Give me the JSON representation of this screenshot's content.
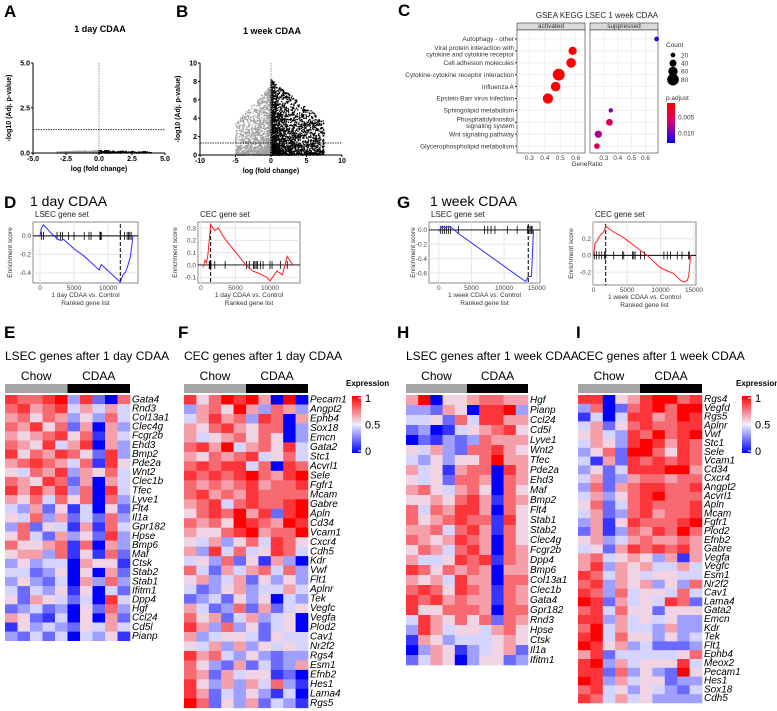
{
  "panels": {
    "A": {
      "letter": "A",
      "title": "1 day CDAA"
    },
    "B": {
      "letter": "B",
      "title": "1 week CDAA"
    },
    "C": {
      "letter": "C",
      "title": "GSEA KEGG LSEC 1 week CDAA"
    },
    "D": {
      "letter": "D",
      "title": "1 day CDAA"
    },
    "E": {
      "letter": "E",
      "title": "LSEC genes after 1 day CDAA"
    },
    "F": {
      "letter": "F",
      "title": "CEC genes after 1 day CDAA"
    },
    "G": {
      "letter": "G",
      "title": "1 week CDAA"
    },
    "H": {
      "letter": "H",
      "title": "LSEC genes after 1 week CDAA"
    },
    "I": {
      "letter": "I",
      "title": "CEC genes after 1 week CDAA"
    }
  },
  "volcano_common": {
    "xlabel": "log (fold change)",
    "ylabel": "-log10 (Adj. p-value)"
  },
  "gsea_common": {
    "ylabel": "Enrichment score",
    "xlabel2": "Ranked gene list"
  },
  "heatmap_common": {
    "group1": "Chow",
    "group2": "CDAA",
    "legend_title": "Expression",
    "legend_ticks": [
      "1",
      "0.5",
      "0"
    ],
    "colors": {
      "low": "#0000ff",
      "mid": "#eeeeff",
      "high": "#ff0000",
      "chow": "#a6a6a6",
      "cdaa": "#000000"
    }
  },
  "chart_data": [
    {
      "id": "A",
      "type": "scatter",
      "title": "1 day CDAA",
      "xlabel": "log (fold change)",
      "ylabel": "-log10 (Adj. p-value)",
      "xlim": [
        -5,
        5
      ],
      "ylim": [
        0,
        5
      ],
      "xticks": [
        "-5.0",
        "-2.5",
        "0.0",
        "2.5",
        "5.0"
      ],
      "xtick_values": [
        -5,
        -2.5,
        0,
        2.5,
        5
      ],
      "yticks": [
        "0.0",
        "2.5",
        "5.0"
      ],
      "ytick_values": [
        0,
        2.5,
        5
      ],
      "threshold_y": 1.3,
      "threshold_x": 0,
      "series": [
        {
          "name": "down",
          "color": "#a0a0a0",
          "n": 320,
          "x_range": [
            -3.2,
            0
          ],
          "y_range": [
            0,
            0.15
          ]
        },
        {
          "name": "up",
          "color": "#000000",
          "n": 260,
          "x_range": [
            0,
            4
          ],
          "y_range": [
            0,
            0.15
          ]
        }
      ]
    },
    {
      "id": "B",
      "type": "scatter",
      "title": "1 week CDAA",
      "xlabel": "log (fold change)",
      "ylabel": "-log10 (Adj. p-value)",
      "xlim": [
        -10,
        10
      ],
      "ylim": [
        0,
        10
      ],
      "xticks": [
        "-10",
        "-5",
        "0",
        "5",
        "10"
      ],
      "xtick_values": [
        -10,
        -5,
        0,
        5,
        10
      ],
      "yticks": [
        "0",
        "2",
        "4",
        "6",
        "8",
        "10"
      ],
      "ytick_values": [
        0,
        2,
        4,
        6,
        8,
        10
      ],
      "threshold_y": 1.3,
      "threshold_x": 0,
      "series": [
        {
          "name": "down",
          "color": "#a0a0a0",
          "n": 1600,
          "x_range": [
            -5,
            0
          ],
          "y_range": [
            0,
            7.6
          ]
        },
        {
          "name": "up",
          "color": "#000000",
          "n": 2600,
          "x_range": [
            0,
            7.5
          ],
          "y_range": [
            0,
            8.2
          ]
        }
      ]
    },
    {
      "id": "C",
      "type": "scatter",
      "title": "GSEA KEGG LSEC 1 week CDAA",
      "xlabel": "GeneRatio",
      "facets": [
        {
          "label": "activated",
          "xlim": [
            0.22,
            0.66
          ],
          "xticks": [
            "0.3",
            "0.4",
            "0.5",
            "0.6"
          ],
          "xtick_values": [
            0.3,
            0.4,
            0.5,
            0.6
          ]
        },
        {
          "label": "suppressed",
          "xlim": [
            0.2,
            0.69
          ],
          "xticks": [
            "0.3",
            "0.4",
            "0.5",
            "0.6"
          ],
          "xtick_values": [
            0.3,
            0.4,
            0.5,
            0.6
          ]
        }
      ],
      "categories": [
        "Autophagy - other",
        "Viral protein interaction with|cytokine and cytokine receptor",
        "Cell adhesion molecules",
        "Cytokine-cytokine receptor interaction",
        "Influenza A",
        "Epstein-Barr virus infection",
        "Sphingolipid metabolism",
        "Phosphatidylinositol|signaling system",
        "Wnt signaling pathway",
        "Glycerophospholipid metabolism"
      ],
      "points": [
        {
          "category": 0,
          "facet": 1,
          "gene_ratio": 0.68,
          "count": 20,
          "p_adjust": 0.0125
        },
        {
          "category": 1,
          "facet": 0,
          "gene_ratio": 0.58,
          "count": 50,
          "p_adjust": 0.0005
        },
        {
          "category": 2,
          "facet": 0,
          "gene_ratio": 0.57,
          "count": 62,
          "p_adjust": 0.0005
        },
        {
          "category": 3,
          "facet": 0,
          "gene_ratio": 0.49,
          "count": 82,
          "p_adjust": 0.0005
        },
        {
          "category": 4,
          "facet": 0,
          "gene_ratio": 0.47,
          "count": 62,
          "p_adjust": 0.0005
        },
        {
          "category": 5,
          "facet": 0,
          "gene_ratio": 0.42,
          "count": 68,
          "p_adjust": 0.0005
        },
        {
          "category": 6,
          "facet": 1,
          "gene_ratio": 0.35,
          "count": 18,
          "p_adjust": 0.009
        },
        {
          "category": 7,
          "facet": 1,
          "gene_ratio": 0.34,
          "count": 38,
          "p_adjust": 0.005
        },
        {
          "category": 8,
          "facet": 1,
          "gene_ratio": 0.26,
          "count": 42,
          "p_adjust": 0.008
        },
        {
          "category": 9,
          "facet": 1,
          "gene_ratio": 0.25,
          "count": 28,
          "p_adjust": 0.004
        }
      ],
      "size_legend": {
        "title": "Count",
        "values": [
          20,
          40,
          60,
          80
        ],
        "labels": [
          "20",
          "40",
          "60",
          "80"
        ]
      },
      "color_legend": {
        "title": "p.adjust",
        "labels": [
          "0.005",
          "0.010"
        ],
        "values": [
          0.005,
          0.01
        ],
        "range": [
          0.0005,
          0.013
        ],
        "colors": [
          "#ff0000",
          "#d0007a",
          "#0000ff"
        ]
      }
    },
    {
      "id": "D-LSEC",
      "type": "line",
      "title": "LSEC gene set",
      "color": "#2d2dff",
      "xlabel": "1 day CDAA vs. Control",
      "xlabel2": "Ranked gene list",
      "ylabel": "Enrichment score",
      "xlim": [
        -1030,
        14400
      ],
      "ylim": [
        -0.51,
        0.15
      ],
      "xticks": [
        "0",
        "5000",
        "10000"
      ],
      "xtick_values": [
        0,
        5000,
        10000
      ],
      "yticks": [
        "0.0",
        "-0.2",
        "-0.4"
      ],
      "ytick_values": [
        0,
        -0.2,
        -0.4
      ],
      "leading_edge": 11800,
      "x": [
        0,
        200,
        500,
        1500,
        2500,
        3000,
        3500,
        5000,
        6500,
        8700,
        9000,
        11800,
        12200,
        12600,
        13000,
        13300,
        13500,
        13650
      ],
      "y": [
        0,
        0.08,
        0.12,
        0.04,
        -0.03,
        -0.05,
        -0.04,
        -0.14,
        -0.22,
        -0.37,
        -0.31,
        -0.5,
        -0.42,
        -0.39,
        -0.3,
        -0.22,
        -0.1,
        0
      ],
      "hits": [
        200,
        500,
        2500,
        3000,
        3300,
        4200,
        5000,
        6500,
        7200,
        7500,
        8800,
        8850,
        8900,
        9000,
        11800,
        12400,
        12800,
        13000,
        13200,
        13400
      ]
    },
    {
      "id": "D-CEC",
      "type": "line",
      "title": "CEC gene set",
      "color": "#ff2020",
      "xlabel": "1 day CDAA vs. Control",
      "xlabel2": "Ranked gene list",
      "ylabel": "Enrichment score",
      "xlim": [
        -430,
        14350
      ],
      "ylim": [
        -0.147,
        0.35
      ],
      "xticks": [
        "0",
        "5000",
        "10000"
      ],
      "xtick_values": [
        0,
        5000,
        10000
      ],
      "yticks": [
        "-0.1",
        "0.0",
        "0.1",
        "0.2",
        "0.3"
      ],
      "ytick_values": [
        -0.1,
        0,
        0.1,
        0.2,
        0.3
      ],
      "leading_edge": 1400,
      "x": [
        300,
        600,
        800,
        1000,
        1200,
        1400,
        2000,
        2500,
        3500,
        6500,
        7500,
        8500,
        9500,
        10000,
        11000,
        11800,
        12500,
        13300
      ],
      "y": [
        -0.02,
        0.04,
        0.02,
        0.08,
        0.2,
        0.33,
        0.28,
        0.3,
        0.21,
        0.0,
        -0.05,
        -0.07,
        -0.1,
        -0.13,
        -0.05,
        -0.08,
        0.07,
        0.0
      ],
      "hits": [
        1200,
        1250,
        1300,
        1350,
        1400,
        1450,
        2000,
        3500,
        6600,
        7000,
        7600,
        7800,
        8000,
        8200,
        8600,
        9000,
        10000,
        10300,
        11500,
        12500
      ]
    },
    {
      "id": "G-LSEC",
      "type": "line",
      "title": "LSEC gene set",
      "color": "#2d2dff",
      "xlabel": "1 week CDAA vs. Control",
      "xlabel2": "Ranked gene list",
      "ylabel": "Enrichment score",
      "xlim": [
        -1500,
        15500
      ],
      "ylim": [
        -0.74,
        0.11
      ],
      "xticks": [
        "0",
        "5000",
        "10000",
        "15000"
      ],
      "xtick_values": [
        0,
        5000,
        10000,
        15000
      ],
      "yticks": [
        "0.0",
        "-0.2",
        "-0.4",
        "-0.6"
      ],
      "ytick_values": [
        0,
        -0.2,
        -0.4,
        -0.6
      ],
      "leading_edge": 13700,
      "x": [
        0,
        500,
        1000,
        1500,
        2000,
        3000,
        13300,
        13700,
        14200,
        14500
      ],
      "y": [
        -0.02,
        0.05,
        0.03,
        0.05,
        0.03,
        -0.05,
        -0.72,
        -0.65,
        -0.65,
        0.0
      ],
      "hits": [
        300,
        600,
        900,
        1200,
        1500,
        1800,
        3000,
        7000,
        7500,
        8000,
        8600,
        10500,
        12000,
        13600,
        13800,
        14000,
        14200,
        14300
      ]
    },
    {
      "id": "G-CEC",
      "type": "line",
      "title": "CEC gene set",
      "color": "#ff2020",
      "xlabel": "1 week CDAA vs. Control",
      "xlabel2": "Ranked gene list",
      "ylabel": "Enrichment score",
      "xlim": [
        -100,
        15300
      ],
      "ylim": [
        -0.355,
        0.4
      ],
      "xticks": [
        "0",
        "5000",
        "10000",
        "15000"
      ],
      "xtick_values": [
        0,
        5000,
        10000,
        15000
      ],
      "yticks": [
        "-0.2",
        "0.0",
        "0.2"
      ],
      "ytick_values": [
        -0.2,
        0,
        0.2
      ],
      "leading_edge": 1800,
      "x": [
        0,
        200,
        500,
        800,
        1200,
        1500,
        1800,
        3000,
        4500,
        6000,
        8000,
        10000,
        12000,
        13000,
        13500,
        14000,
        14200,
        14500
      ],
      "y": [
        0,
        0.15,
        0.17,
        0.22,
        0.26,
        0.28,
        0.35,
        0.28,
        0.21,
        0.12,
        0.0,
        -0.15,
        -0.22,
        -0.3,
        -0.32,
        -0.3,
        -0.25,
        0.0
      ],
      "hits": [
        100,
        400,
        800,
        1200,
        1600,
        1800,
        3000,
        4300,
        4500,
        5800,
        6000,
        6200,
        7000,
        7600,
        10500,
        11000,
        11500,
        12500,
        13200,
        14200,
        14300
      ]
    },
    {
      "id": "E",
      "type": "heatmap",
      "title": "LSEC genes after 1 day CDAA",
      "n_chow": 5,
      "n_cdaa": 5,
      "value_scale": "digit/9",
      "genes": [
        "Gata4",
        "Rnd3",
        "Col13a1",
        "Clec4g",
        "Fcgr2b",
        "Ehd3",
        "Bmp2",
        "Pde2a",
        "Wnt2",
        "Clec1b",
        "Tfec",
        "Lyve1",
        "Flt4",
        "Il1a",
        "Gpr182",
        "Hpse",
        "Bmp6",
        "Maf",
        "Ctsk",
        "Stab2",
        "Stab1",
        "Ifitm1",
        "Dpp4",
        "Hgf",
        "Ccl24",
        "Cd5l",
        "Pianp"
      ],
      "rows": [
        "8778938207",
        "7867846464",
        "6757635374",
        "7685726063",
        "6567857164",
        "7658468063",
        "8576875283",
        "6787647185",
        "5476836574",
        "7658726064",
        "8686837084",
        "6574757073",
        "4362514052",
        "5473624273",
        "3725416174",
        "5742635283",
        "7556717063",
        "5663715172",
        "3534406551",
        "4423505062",
        "3532406373",
        "4243515042",
        "5265424084",
        "2342305273",
        "6521405062",
        "1534325464",
        "3242404351"
      ]
    },
    {
      "id": "F",
      "type": "heatmap",
      "title": "CEC genes after 1 day CDAA",
      "n_chow": 5,
      "n_cdaa": 5,
      "value_scale": "digit/9",
      "genes": [
        "Pecam1",
        "Angpt2",
        "Ephb4",
        "Sox18",
        "Emcn",
        "Gata2",
        "Stc1",
        "Acvrl1",
        "Sele",
        "Fgfr1",
        "Mcam",
        "Gabre",
        "Apln",
        "Cd34",
        "Vcam1",
        "Cxcr4",
        "Cdh5",
        "Kdr",
        "Vwf",
        "Flt1",
        "Aplnr",
        "Tek",
        "Vegfc",
        "Vegfa",
        "Plod2",
        "Cav1",
        "Nr2f2",
        "Rgs4",
        "Esm1",
        "Efnb2",
        "Hes1",
        "Lama4",
        "Rgs5"
      ],
      "rows": [
        "8579896090",
        "3675963763",
        "4686738706",
        "6578657703",
        "6456757503",
        "7869467584",
        "6576784574",
        "7878847087",
        "8787897689",
        "7676786778",
        "7867687777",
        "6784787789",
        "5787968289",
        "7675987698",
        "6557896779",
        "5463574875",
        "6384745874",
        "4537251630",
        "7426467473",
        "5634625353",
        "4235634464",
        "2342535043",
        "6423726245",
        "7562463450",
        "8637352450",
        "6345542544",
        "5463635454",
        "8674353233",
        "7532624236",
        "7626455120",
        "8536364731",
        "8624353140",
        "9725362431"
      ]
    },
    {
      "id": "H",
      "type": "heatmap",
      "title": "LSEC genes after 1 week CDAA",
      "n_chow": 5,
      "n_cdaa": 5,
      "value_scale": "digit/9",
      "genes": [
        "Hgf",
        "Pianp",
        "Ccl24",
        "Cd5l",
        "Lyve1",
        "Wnt2",
        "Tfec",
        "Pde2a",
        "Ehd3",
        "Maf",
        "Bmp2",
        "Flt4",
        "Stab1",
        "Stab2",
        "Clec4g",
        "Fcgr2b",
        "Dpp4",
        "Bmp6",
        "Col13a1",
        "Clec1b",
        "Gata4",
        "Gpr182",
        "Rnd3",
        "Hpse",
        "Ctsk",
        "Il1a",
        "Ifitm1"
      ],
      "rows": [
        "6905567766",
        "3326508893",
        "4452748866",
        "2301456785",
        "0213237666",
        "5463277865",
        "4353557966",
        "6451677086",
        "5452776076",
        "6754675075",
        "5565786176",
        "7476886075",
        "7567877185",
        "6674786175",
        "7656876075",
        "5764786076",
        "6445878176",
        "8757676066",
        "6564866077",
        "7875876176",
        "8786766176",
        "8557776077",
        "4865757276",
        "3864554675",
        "1653444565",
        "0365134562",
        "2465035523"
      ]
    },
    {
      "id": "I",
      "type": "heatmap",
      "title": "CEC genes after 1 week CDAA",
      "n_chow": 5,
      "n_cdaa": 5,
      "value_scale": "digit/9",
      "genes": [
        "Rgs4",
        "Vegfd",
        "Rgs5",
        "Aplnr",
        "Vwf",
        "Stc1",
        "Sele",
        "Vcam1",
        "Cd34",
        "Cxcr4",
        "Angpt2",
        "Acvrl1",
        "Apln",
        "Mcam",
        "Fgfr1",
        "Plod2",
        "Efnb2",
        "Gabre",
        "Vegfa",
        "Vegfc",
        "Esm1",
        "Nr2f2",
        "Cav1",
        "Lama4",
        "Gata2",
        "Emcn",
        "Kdr",
        "Tek",
        "Flt1",
        "Ephb4",
        "Meox2",
        "Pecam1",
        "Hes1",
        "Sox18",
        "Cdh5"
      ],
      "rows": [
        "8805689978",
        "3702789799",
        "1404886798",
        "4625787788",
        "5643879789",
        "4653898687",
        "3572997587",
        "4162878787",
        "3524888996",
        "4623677677",
        "3726788778",
        "4635789777",
        "5724787778",
        "4623786778",
        "3615877789",
        "2613768797",
        "5634676676",
        "4526878786",
        "6745653616",
        "6836564464",
        "8746545544",
        "7836563537",
        "8737455474",
        "9826454872",
        "7847552555",
        "8836454533",
        "7946443633",
        "8947553534",
        "9856342223",
        "6824444457",
        "8936455584",
        "8827353295",
        "9836455233",
        "7845354324",
        "8746453333"
      ]
    }
  ]
}
